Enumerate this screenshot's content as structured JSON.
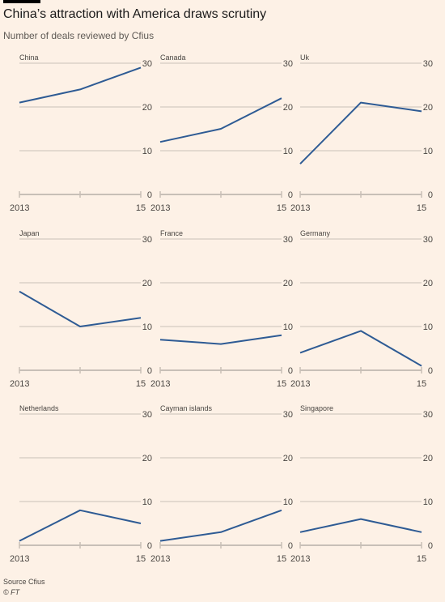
{
  "title": "China’s attraction with America draws scrutiny",
  "subtitle": "Number of deals reviewed by Cfius",
  "source": "Source Cfius",
  "credit": "© FT",
  "colors": {
    "line": "#2e5b94",
    "grid": "#e3d9cf",
    "background": "#fdf1e6"
  },
  "chart_data": [
    {
      "type": "line",
      "title": "China",
      "x": [
        2013,
        2014,
        2015
      ],
      "y": [
        21,
        24,
        29
      ],
      "ylim": [
        0,
        30
      ],
      "yticks": [
        "0",
        "10",
        "20",
        "30"
      ],
      "xticks": [
        "2013",
        "15"
      ]
    },
    {
      "type": "line",
      "title": "Canada",
      "x": [
        2013,
        2014,
        2015
      ],
      "y": [
        12,
        15,
        22
      ],
      "ylim": [
        0,
        30
      ],
      "yticks": [
        "0",
        "10",
        "20",
        "30"
      ],
      "xticks": [
        "2013",
        "15"
      ]
    },
    {
      "type": "line",
      "title": "Uk",
      "x": [
        2013,
        2014,
        2015
      ],
      "y": [
        7,
        21,
        19
      ],
      "ylim": [
        0,
        30
      ],
      "yticks": [
        "0",
        "10",
        "20",
        "30"
      ],
      "xticks": [
        "2013",
        "15"
      ]
    },
    {
      "type": "line",
      "title": "Japan",
      "x": [
        2013,
        2014,
        2015
      ],
      "y": [
        18,
        10,
        12
      ],
      "ylim": [
        0,
        30
      ],
      "yticks": [
        "0",
        "10",
        "20",
        "30"
      ],
      "xticks": [
        "2013",
        "15"
      ]
    },
    {
      "type": "line",
      "title": "France",
      "x": [
        2013,
        2014,
        2015
      ],
      "y": [
        7,
        6,
        8
      ],
      "ylim": [
        0,
        30
      ],
      "yticks": [
        "0",
        "10",
        "20",
        "30"
      ],
      "xticks": [
        "2013",
        "15"
      ]
    },
    {
      "type": "line",
      "title": "Germany",
      "x": [
        2013,
        2014,
        2015
      ],
      "y": [
        4,
        9,
        1
      ],
      "ylim": [
        0,
        30
      ],
      "yticks": [
        "0",
        "10",
        "20",
        "30"
      ],
      "xticks": [
        "2013",
        "15"
      ]
    },
    {
      "type": "line",
      "title": "Netherlands",
      "x": [
        2013,
        2014,
        2015
      ],
      "y": [
        1,
        8,
        5
      ],
      "ylim": [
        0,
        30
      ],
      "yticks": [
        "0",
        "10",
        "20",
        "30"
      ],
      "xticks": [
        "2013",
        "15"
      ]
    },
    {
      "type": "line",
      "title": "Cayman islands",
      "x": [
        2013,
        2014,
        2015
      ],
      "y": [
        1,
        3,
        8
      ],
      "ylim": [
        0,
        30
      ],
      "yticks": [
        "0",
        "10",
        "20",
        "30"
      ],
      "xticks": [
        "2013",
        "15"
      ]
    },
    {
      "type": "line",
      "title": "Singapore",
      "x": [
        2013,
        2014,
        2015
      ],
      "y": [
        3,
        6,
        3
      ],
      "ylim": [
        0,
        30
      ],
      "yticks": [
        "0",
        "10",
        "20",
        "30"
      ],
      "xticks": [
        "2013",
        "15"
      ]
    }
  ]
}
